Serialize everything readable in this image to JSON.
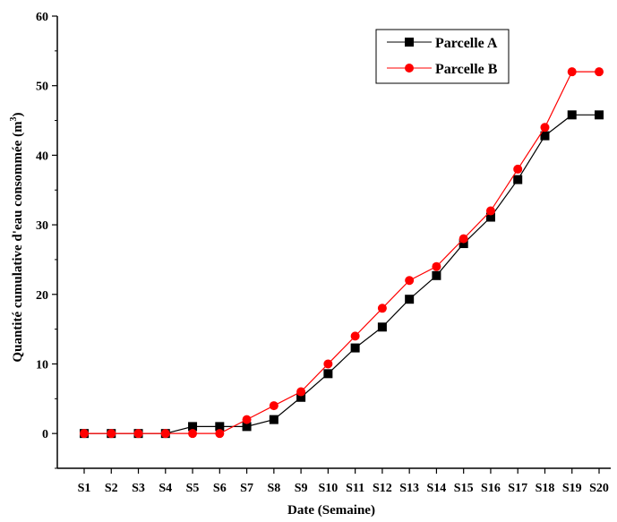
{
  "chart_data": {
    "type": "line",
    "xlabel": "Date (Semaine)",
    "ylabel_main": "Quantité cumulative d'eau consommée (m",
    "ylabel_sup": "3",
    "ylabel_close": ")",
    "categories": [
      "S1",
      "S2",
      "S3",
      "S4",
      "S5",
      "S6",
      "S7",
      "S8",
      "S9",
      "S10",
      "S11",
      "S12",
      "S13",
      "S14",
      "S15",
      "S16",
      "S17",
      "S18",
      "S19",
      "S20"
    ],
    "ylim": [
      -5,
      60
    ],
    "yticks": [
      0,
      10,
      20,
      30,
      40,
      50,
      60
    ],
    "grid": false,
    "legend_position": "top-right",
    "series": [
      {
        "name": "Parcelle A",
        "color": "#000000",
        "marker": "square",
        "values": [
          0,
          0,
          0,
          0,
          1,
          1,
          1,
          2,
          5.2,
          8.6,
          12.3,
          15.3,
          19.3,
          22.7,
          27.3,
          31.1,
          36.5,
          42.8,
          45.8,
          45.8
        ]
      },
      {
        "name": "Parcelle B",
        "color": "#ff0000",
        "marker": "circle",
        "values": [
          0,
          0,
          0,
          0,
          0,
          0,
          2,
          4,
          6,
          10,
          14,
          18,
          22,
          24,
          28,
          32,
          38,
          44,
          52,
          52
        ]
      }
    ]
  }
}
